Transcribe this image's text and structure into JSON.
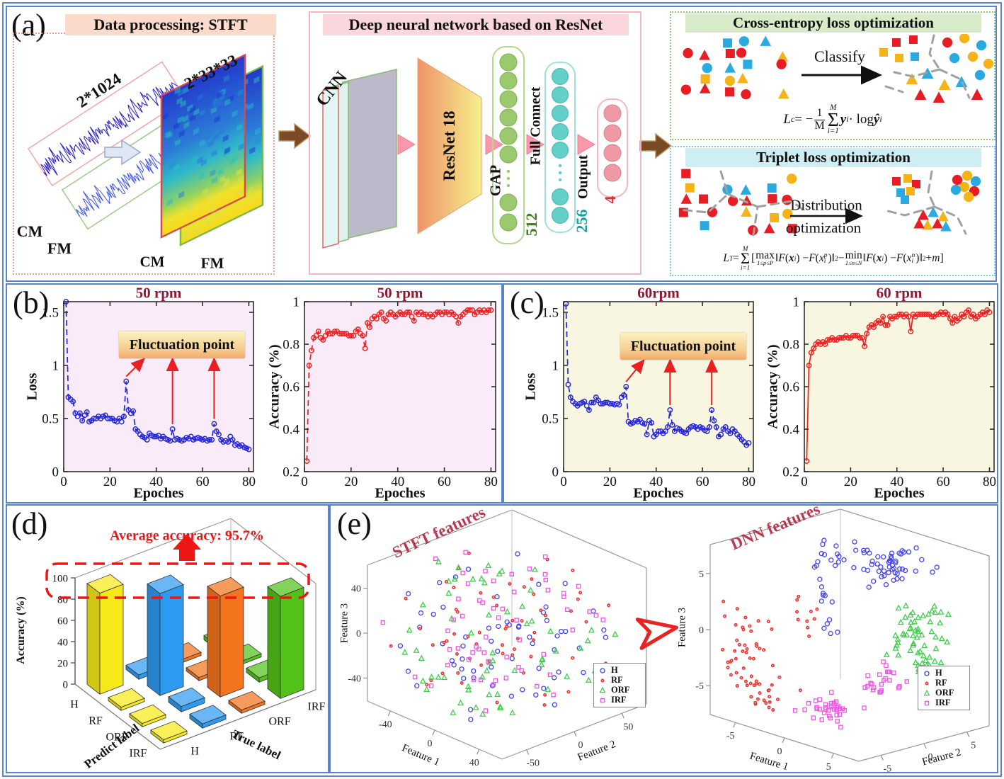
{
  "figure": {
    "panel_labels": {
      "a": "(a)",
      "b": "(b)",
      "c": "(c)",
      "d": "(d)",
      "e": "(e)"
    },
    "colors": {
      "border_blue": "#5b84c8",
      "title_red": "#931635",
      "annotation_red": "#ee1515",
      "arrow_red": "#e82020",
      "brown_arrow": "#7a4a26",
      "shape_red": "#e81d24",
      "shape_yellow": "#f5b318",
      "shape_blue": "#29abe2"
    }
  },
  "panel_a": {
    "stft": {
      "header": "Data processing: STFT",
      "dim_label": "2*1024",
      "ch1": "CM",
      "ch2": "FM",
      "spec_dim_label": "2*33*33",
      "spec_ch1": "CM",
      "spec_ch2": "FM"
    },
    "dnn": {
      "header": "Deep neural network based on ResNet",
      "cnn_label": "CNN",
      "backbone_label": "ResNet 18",
      "gap_label": "GAP",
      "fc_label": "Full Connect",
      "output_label": "Output",
      "dim_512": "512",
      "dim_256": "256",
      "dim_4": "4"
    },
    "cross_entropy": {
      "header": "Cross-entropy loss optimization",
      "arrow_label": "Classify",
      "formula": [
        {
          "t": "var",
          "s": "L"
        },
        {
          "t": "sub",
          "s": "c"
        },
        {
          "t": "txt",
          "s": " = −"
        },
        {
          "t": "frac",
          "num": "1",
          "den": "M"
        },
        {
          "t": "sum",
          "top": "M",
          "bot": "i=1"
        },
        {
          "t": "bvar",
          "s": "y"
        },
        {
          "t": "sub",
          "s": "i"
        },
        {
          "t": "txt",
          "s": " · log "
        },
        {
          "t": "bvar",
          "s": "ŷ"
        },
        {
          "t": "sub",
          "s": "i"
        }
      ]
    },
    "triplet": {
      "header": "Triplet loss optimization",
      "arrow_label_line1": "Distribution",
      "arrow_label_line2": "optimization",
      "formula": [
        {
          "t": "var",
          "s": "L"
        },
        {
          "t": "sub",
          "s": "T"
        },
        {
          "t": "txt",
          "s": " = "
        },
        {
          "t": "sum",
          "top": "M",
          "bot": "i=1"
        },
        {
          "t": "txt",
          "s": "["
        },
        {
          "t": "op",
          "s": "max",
          "bot": "1≤p≤P"
        },
        {
          "t": "txt",
          "s": "‖"
        },
        {
          "t": "var",
          "s": "F"
        },
        {
          "t": "txt",
          "s": "("
        },
        {
          "t": "bvar",
          "s": "x"
        },
        {
          "t": "sub",
          "s": "i"
        },
        {
          "t": "txt",
          "s": ") − "
        },
        {
          "t": "var",
          "s": "F"
        },
        {
          "t": "txt",
          "s": "("
        },
        {
          "t": "var",
          "s": "x"
        },
        {
          "t": "ss",
          "sup": "p",
          "sub": "i"
        },
        {
          "t": "txt",
          "s": ")‖"
        },
        {
          "t": "sup",
          "s": "2"
        },
        {
          "t": "txt",
          "s": " − "
        },
        {
          "t": "op",
          "s": "min",
          "bot": "1≤n≤N"
        },
        {
          "t": "txt",
          "s": "‖"
        },
        {
          "t": "var",
          "s": "F"
        },
        {
          "t": "txt",
          "s": "("
        },
        {
          "t": "bvar",
          "s": "x"
        },
        {
          "t": "sub",
          "s": "i"
        },
        {
          "t": "txt",
          "s": ") − "
        },
        {
          "t": "var",
          "s": "F"
        },
        {
          "t": "txt",
          "s": "("
        },
        {
          "t": "var",
          "s": "x"
        },
        {
          "t": "ss",
          "sup": "n",
          "sub": "i"
        },
        {
          "t": "txt",
          "s": ")‖"
        },
        {
          "t": "sup",
          "s": "2"
        },
        {
          "t": "txt",
          "s": " + "
        },
        {
          "t": "var",
          "s": "m"
        },
        {
          "t": "txt",
          "s": "]"
        }
      ]
    }
  },
  "panel_b": {
    "fluctuation_label": "Fluctuation point"
  },
  "panel_c": {
    "fluctuation_label": "Fluctuation point"
  },
  "panel_d": {
    "annotation": "Average accuracy: 95.7%"
  },
  "chart_data": [
    {
      "type": "line",
      "title": "50 rpm",
      "xlabel": "Epoches",
      "ylabel": "Loss",
      "xlim": [
        0,
        82
      ],
      "ylim": [
        0,
        1.6
      ],
      "xticks": [
        0,
        20,
        40,
        60,
        80
      ],
      "ytick_vals": [
        0,
        0.5,
        1,
        1.5
      ],
      "ytick_labels": [
        "0",
        "0.5",
        "1",
        "1.5"
      ],
      "plot_bg": "#f9ebf7",
      "color": "#2626dd",
      "dashed": true,
      "marker": "open-circle",
      "x_min": 1,
      "x_max": 80,
      "fluct_epochs": [
        27,
        47,
        65
      ],
      "y": [
        1.6,
        0.7,
        0.68,
        0.66,
        0.55,
        0.52,
        0.55,
        0.48,
        0.53,
        0.56,
        0.47,
        0.48,
        0.5,
        0.5,
        0.52,
        0.5,
        0.52,
        0.53,
        0.5,
        0.5,
        0.5,
        0.48,
        0.47,
        0.5,
        0.47,
        0.52,
        0.85,
        0.58,
        0.55,
        0.57,
        0.4,
        0.38,
        0.35,
        0.33,
        0.32,
        0.3,
        0.36,
        0.34,
        0.33,
        0.33,
        0.34,
        0.31,
        0.33,
        0.31,
        0.3,
        0.29,
        0.4,
        0.3,
        0.31,
        0.3,
        0.29,
        0.3,
        0.32,
        0.31,
        0.33,
        0.3,
        0.31,
        0.32,
        0.31,
        0.3,
        0.31,
        0.29,
        0.3,
        0.3,
        0.45,
        0.38,
        0.35,
        0.3,
        0.28,
        0.29,
        0.28,
        0.33,
        0.3,
        0.25,
        0.26,
        0.24,
        0.25,
        0.23,
        0.22,
        0.21
      ]
    },
    {
      "type": "line",
      "title": "50 rpm",
      "xlabel": "Epoches",
      "ylabel": "Accuracy (%)",
      "xlim": [
        0,
        82
      ],
      "ylim": [
        0.2,
        1
      ],
      "xticks": [
        0,
        20,
        40,
        60,
        80
      ],
      "ytick_vals": [
        0.2,
        0.4,
        0.6,
        0.8,
        1
      ],
      "ytick_labels": [
        "0.2",
        "0.4",
        "0.6",
        "0.8",
        "1"
      ],
      "plot_bg": "#f9ebf7",
      "color": "#ee2222",
      "dashed": true,
      "marker": "open-circle",
      "x_min": 1,
      "x_max": 80,
      "y": [
        0.25,
        0.7,
        0.77,
        0.83,
        0.84,
        0.86,
        0.83,
        0.82,
        0.84,
        0.86,
        0.85,
        0.85,
        0.86,
        0.86,
        0.85,
        0.85,
        0.85,
        0.85,
        0.84,
        0.84,
        0.84,
        0.86,
        0.87,
        0.85,
        0.84,
        0.78,
        0.9,
        0.88,
        0.92,
        0.93,
        0.92,
        0.94,
        0.95,
        0.92,
        0.91,
        0.94,
        0.95,
        0.94,
        0.93,
        0.94,
        0.95,
        0.94,
        0.94,
        0.95,
        0.95,
        0.93,
        0.91,
        0.95,
        0.94,
        0.95,
        0.94,
        0.94,
        0.93,
        0.94,
        0.93,
        0.94,
        0.95,
        0.95,
        0.94,
        0.95,
        0.95,
        0.94,
        0.95,
        0.94,
        0.93,
        0.9,
        0.93,
        0.94,
        0.95,
        0.96,
        0.96,
        0.96,
        0.94,
        0.95,
        0.96,
        0.95,
        0.96,
        0.95,
        0.96,
        0.96
      ]
    },
    {
      "type": "line",
      "title": "60rpm",
      "xlabel": "Epoches",
      "ylabel": "Loss",
      "xlim": [
        0,
        82
      ],
      "ylim": [
        0,
        1.6
      ],
      "xticks": [
        0,
        20,
        40,
        60,
        80
      ],
      "ytick_vals": [
        0,
        0.5,
        1,
        1.5
      ],
      "ytick_labels": [
        "0",
        "0.5",
        "1",
        "1.5"
      ],
      "plot_bg": "#f8f6e1",
      "color": "#2626dd",
      "dashed": true,
      "marker": "open-circle",
      "x_min": 1,
      "x_max": 80,
      "fluct_epochs": [
        27,
        46,
        64
      ],
      "y": [
        1.58,
        0.82,
        0.7,
        0.66,
        0.64,
        0.62,
        0.64,
        0.65,
        0.66,
        0.62,
        0.58,
        0.65,
        0.65,
        0.7,
        0.67,
        0.64,
        0.64,
        0.65,
        0.65,
        0.64,
        0.64,
        0.63,
        0.64,
        0.63,
        0.7,
        0.72,
        0.8,
        0.47,
        0.45,
        0.46,
        0.48,
        0.47,
        0.49,
        0.46,
        0.45,
        0.35,
        0.48,
        0.46,
        0.33,
        0.35,
        0.38,
        0.38,
        0.36,
        0.38,
        0.42,
        0.58,
        0.44,
        0.38,
        0.41,
        0.4,
        0.38,
        0.37,
        0.36,
        0.4,
        0.42,
        0.43,
        0.42,
        0.4,
        0.42,
        0.41,
        0.39,
        0.38,
        0.42,
        0.58,
        0.48,
        0.42,
        0.33,
        0.35,
        0.4,
        0.42,
        0.38,
        0.36,
        0.4,
        0.38,
        0.35,
        0.33,
        0.3,
        0.28,
        0.25,
        0.27
      ]
    },
    {
      "type": "line",
      "title": "60 rpm",
      "xlabel": "Epoches",
      "ylabel": "Accuracy (%)",
      "xlim": [
        0,
        82
      ],
      "ylim": [
        0.2,
        1
      ],
      "xticks": [
        0,
        20,
        40,
        60,
        80
      ],
      "ytick_vals": [
        0.2,
        0.4,
        0.6,
        0.8,
        1
      ],
      "ytick_labels": [
        "0.2",
        "0.4",
        "0.6",
        "0.8",
        "1"
      ],
      "plot_bg": "#f8f6e1",
      "color": "#ee2222",
      "dashed": false,
      "marker": "open-circle",
      "x_min": 1,
      "x_max": 80,
      "y": [
        0.25,
        0.7,
        0.76,
        0.78,
        0.8,
        0.81,
        0.8,
        0.81,
        0.8,
        0.82,
        0.82,
        0.83,
        0.82,
        0.82,
        0.83,
        0.83,
        0.83,
        0.84,
        0.83,
        0.83,
        0.84,
        0.84,
        0.84,
        0.83,
        0.83,
        0.79,
        0.85,
        0.88,
        0.89,
        0.88,
        0.9,
        0.91,
        0.9,
        0.93,
        0.89,
        0.89,
        0.93,
        0.92,
        0.93,
        0.93,
        0.94,
        0.94,
        0.93,
        0.94,
        0.93,
        0.86,
        0.94,
        0.93,
        0.94,
        0.94,
        0.94,
        0.94,
        0.94,
        0.94,
        0.93,
        0.93,
        0.94,
        0.94,
        0.95,
        0.94,
        0.95,
        0.94,
        0.92,
        0.9,
        0.93,
        0.91,
        0.92,
        0.94,
        0.93,
        0.95,
        0.96,
        0.93,
        0.94,
        0.92,
        0.93,
        0.94,
        0.95,
        0.94,
        0.96,
        0.95
      ]
    },
    {
      "type": "bar3d",
      "zlabel": "Accuracy (%)",
      "xlabel": "Predict label",
      "y2label": "True label",
      "zticks": [
        0,
        20,
        40,
        60,
        80,
        100
      ],
      "predict_labels": [
        "H",
        "RF",
        "ORF",
        "IRF"
      ],
      "true_labels": [
        "H",
        "RF",
        "ORF",
        "IRF"
      ],
      "annotation": "Average accuracy: 95.7%",
      "average_accuracy": 95.7,
      "series": [
        {
          "name": "H",
          "color": "#f7e919",
          "values": [
            95,
            3,
            3,
            3
          ]
        },
        {
          "name": "RF",
          "color": "#2e9bf0",
          "values": [
            4,
            96,
            5,
            4
          ]
        },
        {
          "name": "ORF",
          "color": "#f4741e",
          "values": [
            3,
            3,
            95,
            3
          ]
        },
        {
          "name": "IRF",
          "color": "#52c218",
          "values": [
            4,
            3,
            4,
            96
          ]
        }
      ]
    },
    {
      "type": "scatter3",
      "title": "STFT features",
      "xlabel": "Feature 1",
      "ylabel": "Feature 2",
      "zlabel": "Feature 3",
      "xtick_labels": [
        "-40",
        "0",
        "40"
      ],
      "ytick_labels": [
        "-50",
        "0",
        "50"
      ],
      "ztick_labels": [
        "-40",
        "0",
        "40"
      ],
      "legend": [
        "H",
        "RF",
        "ORF",
        "IRF"
      ],
      "marker_styles": {
        "H": "open-circle",
        "RF": "filled-circle",
        "ORF": "open-triangle",
        "IRF": "open-square"
      },
      "colors": {
        "H": "#4343f5",
        "RF": "#f23434",
        "ORF": "#3ecf4a",
        "IRF": "#f055e5"
      },
      "mode": "uniform",
      "n_per_class": 60
    },
    {
      "type": "scatter3",
      "title": "DNN features",
      "xlabel": "Feature 1",
      "ylabel": "Feature 2",
      "zlabel": "Feature 3",
      "xtick_labels": [
        "-5",
        "0",
        "5"
      ],
      "ytick_labels": [
        "-5",
        "0",
        "5"
      ],
      "ztick_labels": [
        "-5",
        "0",
        "5"
      ],
      "legend": [
        "H",
        "RF",
        "ORF",
        "IRF"
      ],
      "marker_styles": {
        "H": "open-circle",
        "RF": "filled-circle",
        "ORF": "open-triangle",
        "IRF": "open-square"
      },
      "colors": {
        "H": "#4343f5",
        "RF": "#f23434",
        "ORF": "#3ecf4a",
        "IRF": "#f055e5"
      },
      "mode": "clusters",
      "clusters": {
        "H": [
          [
            0.42,
            0.52,
            0.94,
            0.1,
            0.1,
            0.05,
            22
          ],
          [
            0.6,
            0.72,
            0.88,
            0.07,
            0.09,
            0.06,
            45
          ],
          [
            0.38,
            0.45,
            0.66,
            0.03,
            0.03,
            0.1,
            12
          ]
        ],
        "RF": [
          [
            0.1,
            0.15,
            0.45,
            0.08,
            0.08,
            0.1,
            28
          ],
          [
            0.2,
            0.14,
            0.2,
            0.09,
            0.08,
            0.08,
            34
          ],
          [
            0.32,
            0.35,
            0.6,
            0.04,
            0.04,
            0.06,
            10
          ]
        ],
        "ORF": [
          [
            0.7,
            0.8,
            0.55,
            0.1,
            0.07,
            0.07,
            40
          ],
          [
            0.8,
            0.7,
            0.4,
            0.08,
            0.06,
            0.05,
            20
          ]
        ],
        "IRF": [
          [
            0.48,
            0.35,
            0.1,
            0.07,
            0.07,
            0.05,
            36
          ],
          [
            0.66,
            0.58,
            0.28,
            0.06,
            0.08,
            0.06,
            24
          ]
        ]
      }
    }
  ]
}
